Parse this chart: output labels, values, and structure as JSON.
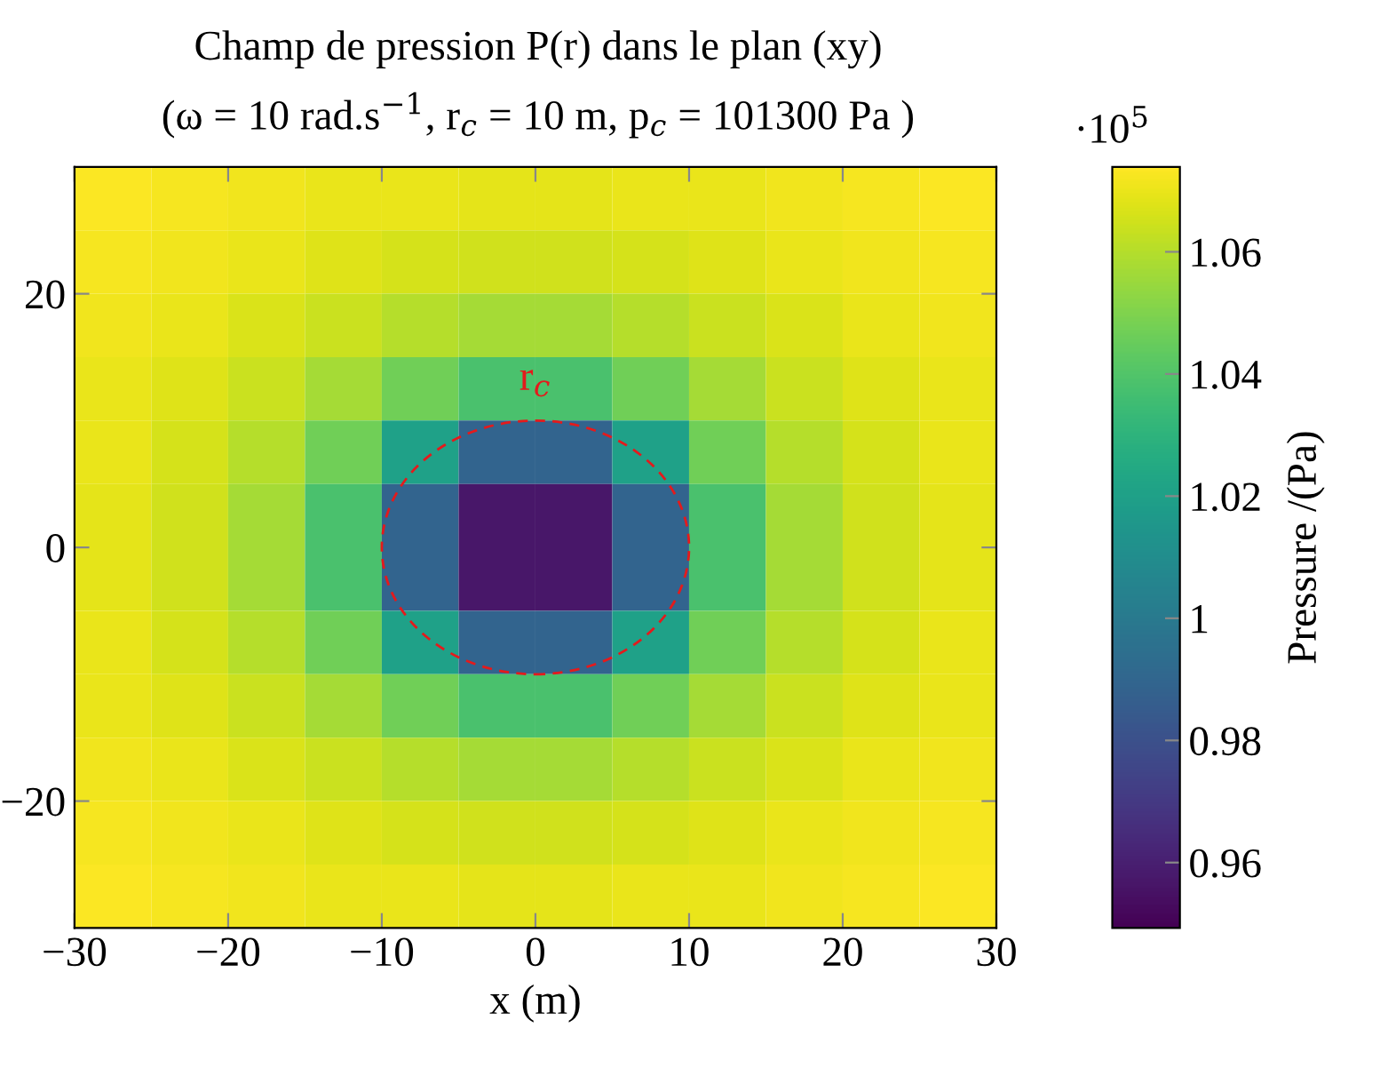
{
  "chart_data": {
    "type": "heatmap",
    "title": "Champ de pression P(r) dans le plan (xy)",
    "subtitle": "(ω = 10 rad.s$^{−1}$, r$_{c}$ = 10 m, p$_{c}$ = 101300 Pa )",
    "xlabel": "x (m)",
    "clabel": "Pressure /(Pa)",
    "x": [
      -27.5,
      -22.5,
      -17.5,
      -12.5,
      -7.5,
      -2.5,
      2.5,
      7.5,
      12.5,
      17.5,
      22.5,
      27.5
    ],
    "y": [
      27.5,
      22.5,
      17.5,
      12.5,
      7.5,
      2.5,
      -2.5,
      -7.5,
      -12.5,
      -17.5,
      -22.5,
      -27.5
    ],
    "xlim": [
      -30,
      30
    ],
    "ylim": [
      -30,
      30
    ],
    "xticks": [
      -30,
      -20,
      -10,
      0,
      10,
      20,
      30
    ],
    "yticks": [
      -20,
      0,
      20
    ],
    "cells": [
      [
        1.073,
        1.072,
        1.071,
        1.07,
        1.07,
        1.069,
        1.069,
        1.07,
        1.07,
        1.071,
        1.072,
        1.073
      ],
      [
        1.072,
        1.071,
        1.07,
        1.068,
        1.066,
        1.065,
        1.065,
        1.066,
        1.068,
        1.07,
        1.071,
        1.072
      ],
      [
        1.071,
        1.07,
        1.067,
        1.064,
        1.06,
        1.057,
        1.057,
        1.06,
        1.064,
        1.067,
        1.07,
        1.071
      ],
      [
        1.07,
        1.068,
        1.064,
        1.057,
        1.047,
        1.038,
        1.038,
        1.047,
        1.057,
        1.064,
        1.068,
        1.07
      ],
      [
        1.07,
        1.066,
        1.06,
        1.047,
        1.02,
        0.989,
        0.989,
        1.02,
        1.047,
        1.06,
        1.066,
        1.07
      ],
      [
        1.069,
        1.065,
        1.057,
        1.038,
        0.989,
        0.957,
        0.957,
        0.989,
        1.038,
        1.057,
        1.065,
        1.069
      ],
      [
        1.069,
        1.065,
        1.057,
        1.038,
        0.989,
        0.957,
        0.957,
        0.989,
        1.038,
        1.057,
        1.065,
        1.069
      ],
      [
        1.07,
        1.066,
        1.06,
        1.047,
        1.02,
        0.989,
        0.989,
        1.02,
        1.047,
        1.06,
        1.066,
        1.07
      ],
      [
        1.07,
        1.068,
        1.064,
        1.057,
        1.047,
        1.038,
        1.038,
        1.047,
        1.057,
        1.064,
        1.068,
        1.07
      ],
      [
        1.071,
        1.07,
        1.067,
        1.064,
        1.06,
        1.057,
        1.057,
        1.06,
        1.064,
        1.067,
        1.07,
        1.071
      ],
      [
        1.072,
        1.071,
        1.07,
        1.068,
        1.066,
        1.065,
        1.065,
        1.066,
        1.068,
        1.07,
        1.071,
        1.072
      ],
      [
        1.073,
        1.072,
        1.071,
        1.07,
        1.07,
        1.069,
        1.069,
        1.07,
        1.07,
        1.071,
        1.072,
        1.073
      ]
    ],
    "clim": [
      0.9493,
      1.0739
    ],
    "cticks": [
      0.96,
      0.98,
      1,
      1.02,
      1.04,
      1.06
    ],
    "annotations": [
      "r$_{c}$",
      "·10$^{5}$"
    ],
    "grid": false,
    "legend": false
  }
}
